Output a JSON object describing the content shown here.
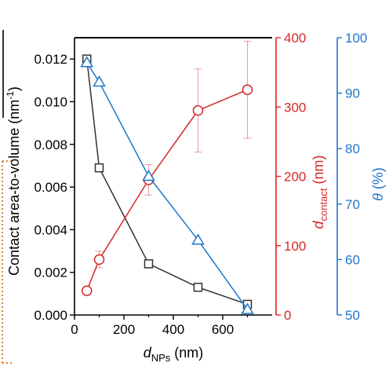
{
  "chart_data": {
    "type": "line",
    "xlabel": "d",
    "xlabel_sub": "NPs",
    "xlabel_unit": " (nm)",
    "xlim": [
      0,
      800
    ],
    "xticks": [
      0,
      200,
      400,
      600
    ],
    "axes": {
      "left": {
        "label": "Contact area-to-volume (nm",
        "label_sup": "-1",
        "label_end": ")",
        "ylim": [
          0,
          0.013
        ],
        "ticks": [
          "0.000",
          "0.002",
          "0.004",
          "0.006",
          "0.008",
          "0.010",
          "0.012"
        ],
        "color": "#000000"
      },
      "right1": {
        "label": "d",
        "label_sub": "contact",
        "label_unit": " (nm)",
        "ylim": [
          0,
          400
        ],
        "ticks": [
          "0",
          "100",
          "200",
          "300",
          "400"
        ],
        "color": "#d62728"
      },
      "right2": {
        "label": "θ",
        "label_unit": " (%)",
        "ylim": [
          50,
          100
        ],
        "ticks": [
          "50",
          "60",
          "70",
          "80",
          "90",
          "100"
        ],
        "color": "#1f77c9"
      }
    },
    "series": [
      {
        "axis": "left",
        "marker": "square",
        "color": "#333333",
        "x": [
          50,
          100,
          300,
          500,
          700
        ],
        "y": [
          0.012,
          0.0069,
          0.0024,
          0.0013,
          0.0005
        ]
      },
      {
        "axis": "right1",
        "marker": "circle",
        "color": "#d62728",
        "x": [
          50,
          100,
          300,
          500,
          700
        ],
        "y": [
          35,
          80,
          195,
          295,
          325
        ],
        "err": [
          0,
          12,
          22,
          60,
          70
        ]
      },
      {
        "axis": "right2",
        "marker": "triangle",
        "color": "#1f77c9",
        "x": [
          50,
          100,
          300,
          500,
          700
        ],
        "y": [
          95.5,
          92,
          75,
          63.5,
          51
        ]
      }
    ]
  },
  "colors": {
    "left_bar": "#333333",
    "dotted_frame": "#e8822a"
  }
}
